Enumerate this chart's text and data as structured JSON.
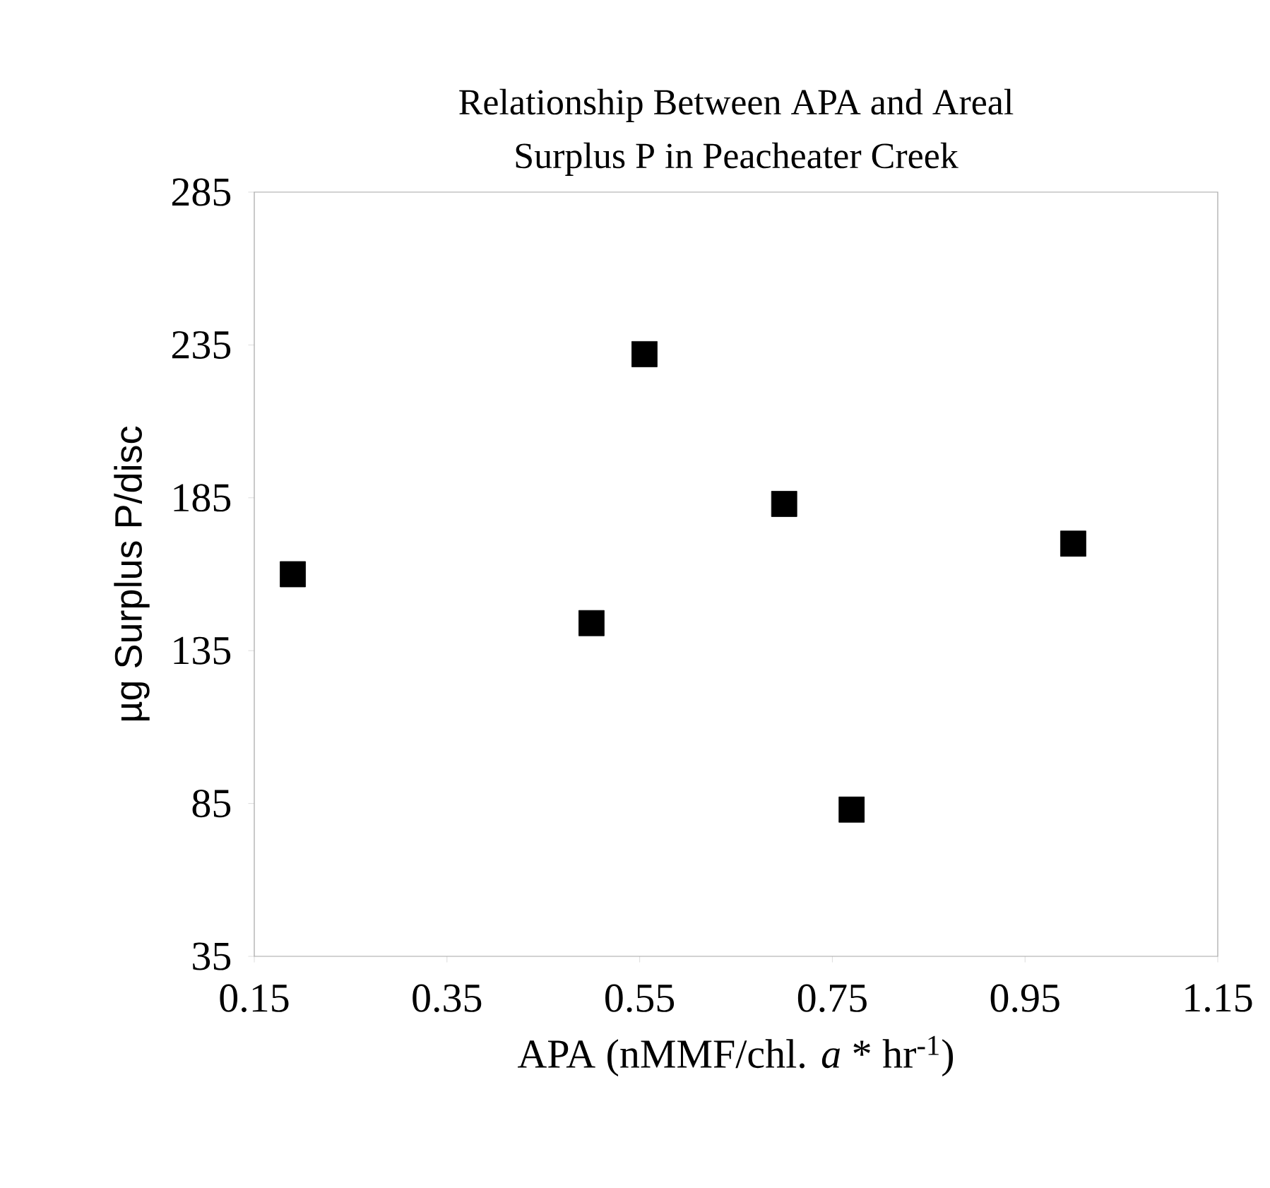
{
  "chart_data": {
    "type": "scatter",
    "title": "Relationship Between APA and Areal Surplus P in Peacheater Creek",
    "xlabel": "APA (nMMF/chl. *a* * hr$^{-1}$)",
    "ylabel": "µg Surplus P/disc",
    "x": [
      0.19,
      0.5,
      0.555,
      0.7,
      0.77,
      1.0
    ],
    "values": [
      160,
      144,
      232,
      183,
      83,
      170
    ],
    "color": "#000000",
    "marker": "square",
    "xlim": [
      0.15,
      1.15
    ],
    "xticks": [
      0.15,
      0.35,
      0.55,
      0.75,
      0.95,
      1.15
    ],
    "ylim": [
      35,
      285
    ],
    "yticks": [
      35,
      85,
      135,
      185,
      235,
      285
    ],
    "grid": false
  }
}
